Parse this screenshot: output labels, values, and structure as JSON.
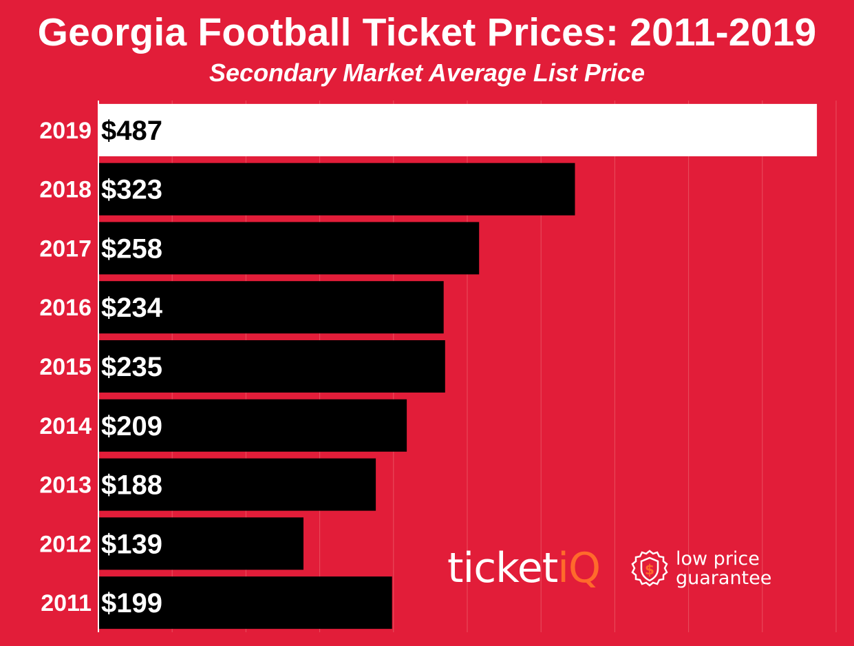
{
  "chart_data": {
    "type": "bar",
    "orientation": "horizontal",
    "title": "Georgia Football Ticket Prices: 2011-2019",
    "subtitle": "Secondary Market Average List Price",
    "categories": [
      "2019",
      "2018",
      "2017",
      "2016",
      "2015",
      "2014",
      "2013",
      "2012",
      "2011"
    ],
    "values": [
      487,
      323,
      258,
      234,
      235,
      209,
      188,
      139,
      199
    ],
    "value_labels": [
      "$487",
      "$323",
      "$258",
      "$234",
      "$235",
      "$209",
      "$188",
      "$139",
      "$199"
    ],
    "xlim": [
      0,
      500
    ],
    "grid": true,
    "highlight_category": "2019",
    "colors": {
      "background": "#e21d39",
      "bar": "#000000",
      "highlight_bar": "#ffffff",
      "label_on_bar": "#ffffff",
      "label_on_highlight": "#000000",
      "axis_labels": "#ffffff",
      "grid": "#e9505f"
    }
  },
  "branding": {
    "logo_word_main": "ticket",
    "logo_word_accent": "iQ",
    "logo_accent_color": "#ff6a2b",
    "badge_icon": "shield-dollar-icon",
    "tagline_line1": "low price",
    "tagline_line2": "guarantee"
  }
}
